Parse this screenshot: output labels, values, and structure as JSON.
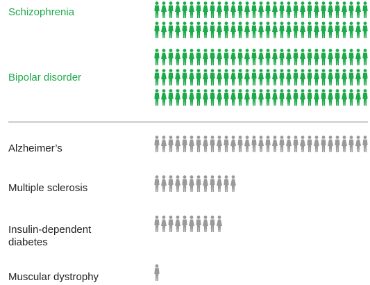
{
  "colors": {
    "group_a": "#1daa4a",
    "group_b": "#9a9a9a",
    "divider": "#6f6f6f"
  },
  "icon": "person-icon",
  "chart_data": {
    "type": "pictograph",
    "title": "",
    "categories": [
      "Schizophrenia",
      "Bipolar disorder",
      "Alzheimer's",
      "Multiple sclerosis",
      "Insulin-dependent diabetes",
      "Muscular dystrophy"
    ],
    "rows": [
      {
        "label": "Schizophrenia",
        "group": "green",
        "icons": 62
      },
      {
        "label": "Bipolar disorder",
        "group": "green",
        "icons": 93
      },
      {
        "label": "Alzheimer’s",
        "group": "gray",
        "icons": 31
      },
      {
        "label": "Multiple sclerosis",
        "group": "gray",
        "icons": 12
      },
      {
        "label": "Insulin-dependent\ndiabetes",
        "group": "gray",
        "icons": 10
      },
      {
        "label": "Muscular dystrophy",
        "group": "gray",
        "icons": 1
      }
    ]
  }
}
